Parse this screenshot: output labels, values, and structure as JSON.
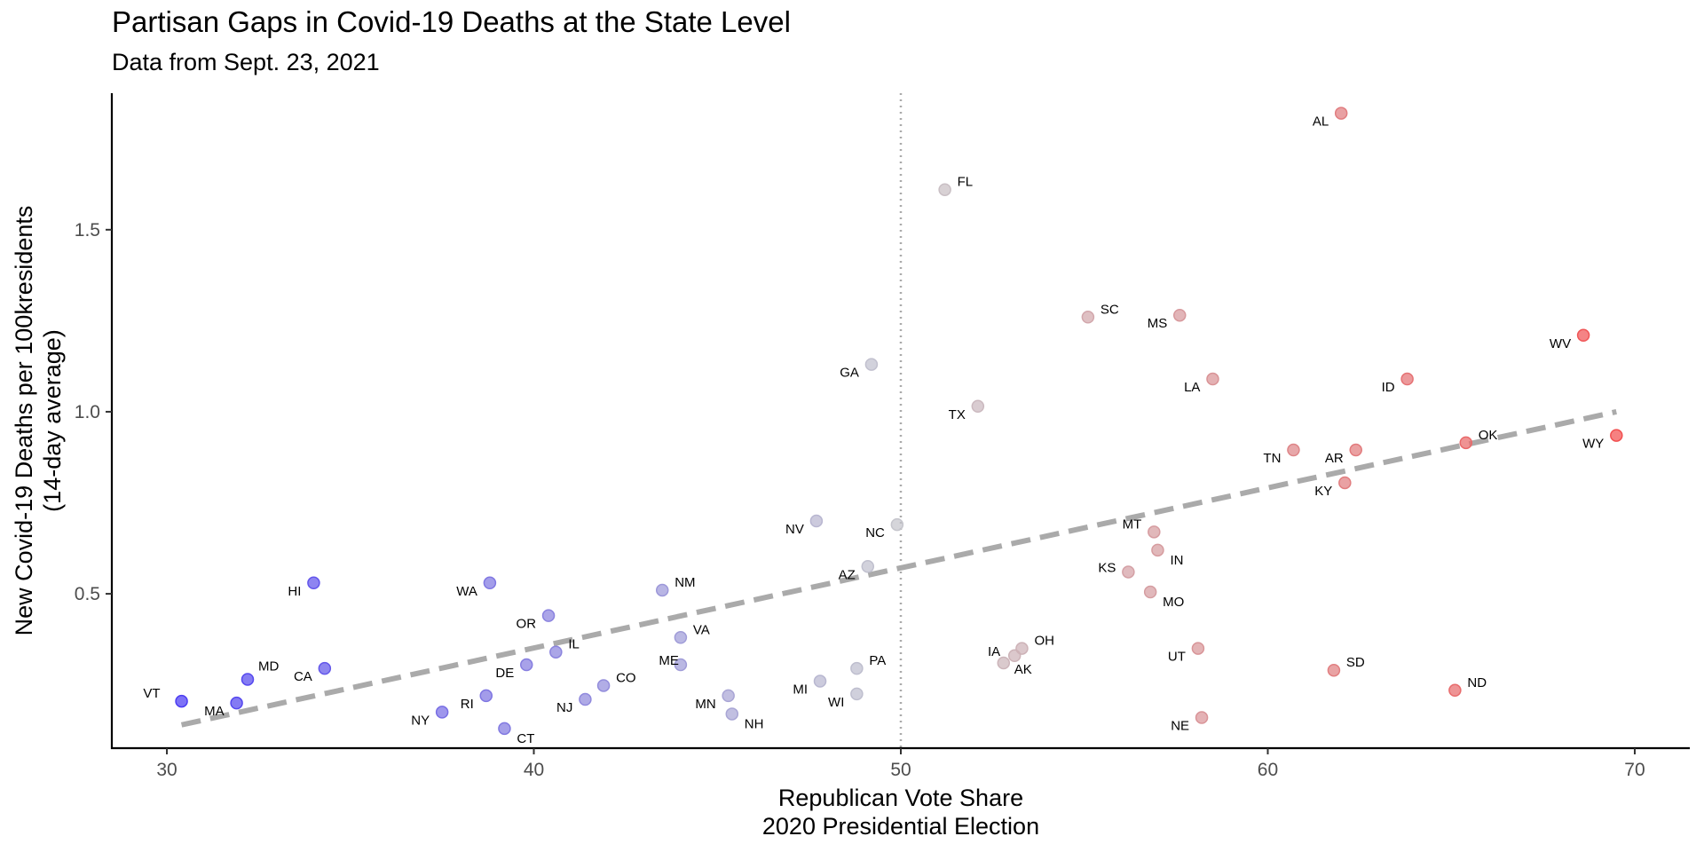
{
  "chart_data": {
    "type": "scatter",
    "title": "Partisan Gaps in Covid-19 Deaths at the State Level",
    "subtitle": "Data from Sept. 23, 2021",
    "xlabel": [
      "Republican Vote Share",
      "2020 Presidential Election"
    ],
    "ylabel": [
      "New Covid-19 Deaths per 100kresidents",
      "(14-day average)"
    ],
    "xlim": [
      28.5,
      71.5
    ],
    "ylim": [
      0.076,
      1.875
    ],
    "xticks": [
      30,
      40,
      50,
      60,
      70
    ],
    "yticks": [
      0.5,
      1.0,
      1.5
    ],
    "ytick_labels": [
      "0.5",
      "1.0",
      "1.5"
    ],
    "grid": false,
    "reference_line_x": 50,
    "trend_line": {
      "x": [
        30.4,
        69.5
      ],
      "y": [
        0.14,
        1.0
      ]
    },
    "colors": {
      "dem": "#4b3cf2",
      "mid": "#c6c6cc",
      "rep": "#f25050",
      "trend": "#aaaaaa",
      "ref": "#aaaaaa"
    },
    "points": [
      {
        "state": "VT",
        "x": 30.4,
        "y": 0.205
      },
      {
        "state": "MA",
        "x": 31.9,
        "y": 0.2
      },
      {
        "state": "MD",
        "x": 32.2,
        "y": 0.265
      },
      {
        "state": "HI",
        "x": 34.0,
        "y": 0.53
      },
      {
        "state": "CA",
        "x": 34.3,
        "y": 0.295
      },
      {
        "state": "NY",
        "x": 37.5,
        "y": 0.175
      },
      {
        "state": "RI",
        "x": 38.7,
        "y": 0.22
      },
      {
        "state": "WA",
        "x": 38.8,
        "y": 0.53
      },
      {
        "state": "CT",
        "x": 39.2,
        "y": 0.13
      },
      {
        "state": "DE",
        "x": 39.8,
        "y": 0.305
      },
      {
        "state": "OR",
        "x": 40.4,
        "y": 0.44
      },
      {
        "state": "IL",
        "x": 40.6,
        "y": 0.34
      },
      {
        "state": "NJ",
        "x": 41.4,
        "y": 0.21
      },
      {
        "state": "CO",
        "x": 41.9,
        "y": 0.248
      },
      {
        "state": "NM",
        "x": 43.5,
        "y": 0.51
      },
      {
        "state": "ME",
        "x": 44.0,
        "y": 0.305
      },
      {
        "state": "VA",
        "x": 44.0,
        "y": 0.38
      },
      {
        "state": "MN",
        "x": 45.3,
        "y": 0.22
      },
      {
        "state": "NH",
        "x": 45.4,
        "y": 0.17
      },
      {
        "state": "NV",
        "x": 47.7,
        "y": 0.7
      },
      {
        "state": "MI",
        "x": 47.8,
        "y": 0.26
      },
      {
        "state": "PA",
        "x": 48.8,
        "y": 0.295
      },
      {
        "state": "WI",
        "x": 48.8,
        "y": 0.225
      },
      {
        "state": "AZ",
        "x": 49.1,
        "y": 0.575
      },
      {
        "state": "GA",
        "x": 49.2,
        "y": 1.13
      },
      {
        "state": "NC",
        "x": 49.9,
        "y": 0.69
      },
      {
        "state": "FL",
        "x": 51.2,
        "y": 1.61
      },
      {
        "state": "TX",
        "x": 52.1,
        "y": 1.015
      },
      {
        "state": "IA",
        "x": 53.1,
        "y": 0.33
      },
      {
        "state": "AK",
        "x": 52.8,
        "y": 0.31
      },
      {
        "state": "OH",
        "x": 53.3,
        "y": 0.35
      },
      {
        "state": "SC",
        "x": 55.1,
        "y": 1.26
      },
      {
        "state": "KS",
        "x": 56.2,
        "y": 0.56
      },
      {
        "state": "MO",
        "x": 56.8,
        "y": 0.505
      },
      {
        "state": "MT",
        "x": 56.9,
        "y": 0.67
      },
      {
        "state": "IN",
        "x": 57.0,
        "y": 0.62
      },
      {
        "state": "MS",
        "x": 57.6,
        "y": 1.265
      },
      {
        "state": "UT",
        "x": 58.1,
        "y": 0.35
      },
      {
        "state": "NE",
        "x": 58.2,
        "y": 0.16
      },
      {
        "state": "LA",
        "x": 58.5,
        "y": 1.09
      },
      {
        "state": "TN",
        "x": 60.7,
        "y": 0.895
      },
      {
        "state": "SD",
        "x": 61.8,
        "y": 0.29
      },
      {
        "state": "AL",
        "x": 62.0,
        "y": 1.82
      },
      {
        "state": "KY",
        "x": 62.1,
        "y": 0.805
      },
      {
        "state": "AR",
        "x": 62.4,
        "y": 0.895
      },
      {
        "state": "ID",
        "x": 63.8,
        "y": 1.09
      },
      {
        "state": "ND",
        "x": 65.1,
        "y": 0.235
      },
      {
        "state": "OK",
        "x": 65.4,
        "y": 0.915
      },
      {
        "state": "WV",
        "x": 68.6,
        "y": 1.21
      },
      {
        "state": "WY",
        "x": 69.5,
        "y": 0.935
      }
    ]
  }
}
